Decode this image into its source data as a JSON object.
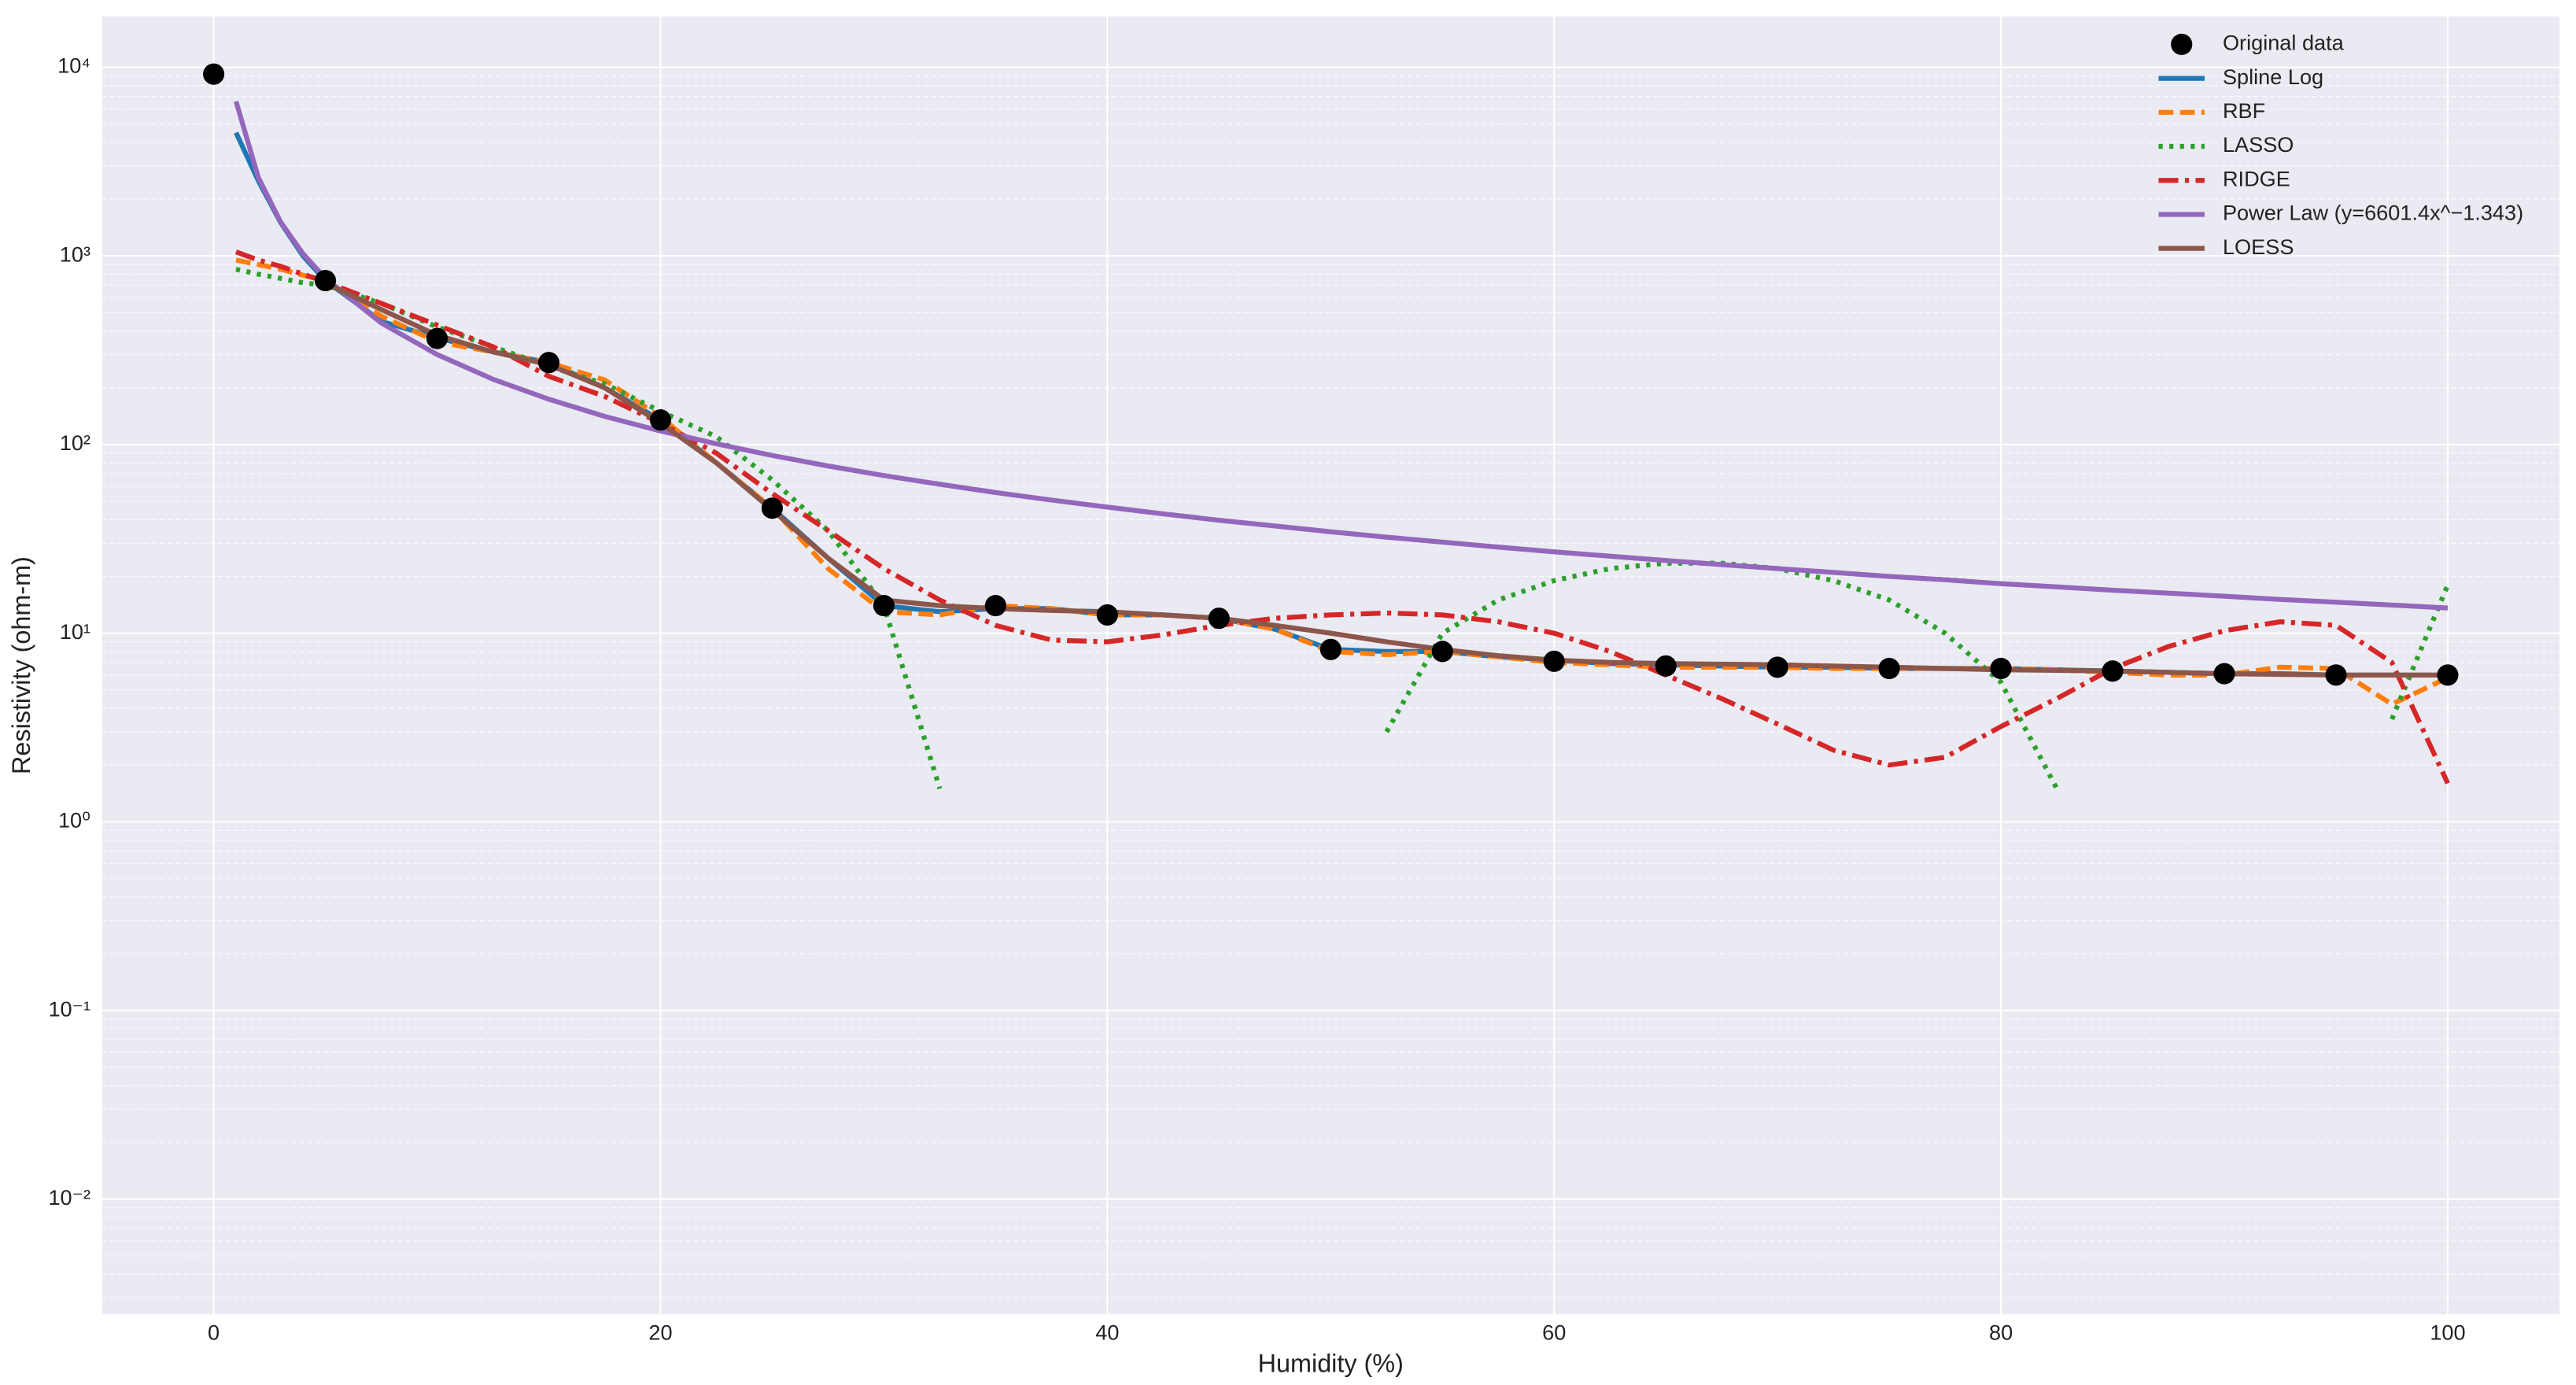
{
  "chart_data": {
    "type": "line",
    "xlabel": "Humidity (%)",
    "ylabel": "Resistivity (ohm-m)",
    "xlim": [
      -5,
      105
    ],
    "xticks": [
      0,
      20,
      40,
      60,
      80,
      100
    ],
    "ylim": [
      0.00245,
      18600
    ],
    "log_y": true,
    "yticks": [
      {
        "value": 0.01,
        "label": "10⁻²"
      },
      {
        "value": 0.1,
        "label": "10⁻¹"
      },
      {
        "value": 1,
        "label": "10⁰"
      },
      {
        "value": 10,
        "label": "10¹"
      },
      {
        "value": 100,
        "label": "10²"
      },
      {
        "value": 1000,
        "label": "10³"
      },
      {
        "value": 10000,
        "label": "10⁴"
      }
    ],
    "grid": true,
    "minor_grid": true,
    "legend": "upper right",
    "series": [
      {
        "name": "Original data",
        "type": "scatter",
        "color": "#000000",
        "x": [
          0,
          5,
          10,
          15,
          20,
          25,
          30,
          35,
          40,
          45,
          50,
          55,
          60,
          65,
          70,
          75,
          80,
          85,
          90,
          95,
          100
        ],
        "values": [
          9200,
          740,
          365,
          272,
          135,
          46,
          14,
          14,
          12.5,
          12,
          8.2,
          8,
          7.1,
          6.7,
          6.6,
          6.5,
          6.5,
          6.3,
          6.1,
          6.0,
          6.0
        ]
      },
      {
        "name": "Spline Log",
        "color": "#1f77b4",
        "dash": "solid",
        "x": [
          1,
          2,
          3,
          4,
          5,
          7.5,
          10,
          12.5,
          15,
          17.5,
          20,
          22.5,
          25,
          27.5,
          30,
          32.5,
          35,
          37.5,
          40,
          42.5,
          45,
          47.5,
          50,
          52.5,
          55,
          57.5,
          60,
          62.5,
          65,
          67.5,
          70,
          72.5,
          75,
          77.5,
          80,
          82.5,
          85,
          87.5,
          90,
          92.5,
          95,
          97.5,
          100
        ],
        "values": [
          4500,
          2500,
          1500,
          1000,
          740,
          450,
          368,
          310,
          272,
          200,
          135,
          80,
          46,
          25,
          14,
          13,
          13.5,
          13.5,
          12.5,
          12.5,
          12,
          10.5,
          8.2,
          8,
          8,
          7.5,
          7.2,
          6.9,
          6.8,
          6.7,
          6.6,
          6.6,
          6.5,
          6.5,
          6.5,
          6.4,
          6.3,
          6.2,
          6.1,
          6.1,
          6.0,
          6.0,
          6.0
        ]
      },
      {
        "name": "RBF",
        "color": "#ff7f0e",
        "dash": "dashed",
        "x": [
          1,
          2,
          3,
          4,
          5,
          7.5,
          10,
          12.5,
          15,
          17.5,
          20,
          22.5,
          25,
          27.5,
          30,
          32.5,
          35,
          37.5,
          40,
          42.5,
          45,
          47.5,
          50,
          52.5,
          55,
          57.5,
          60,
          62.5,
          65,
          67.5,
          70,
          72.5,
          75,
          77.5,
          80,
          82.5,
          85,
          87.5,
          90,
          92.5,
          95,
          97.5,
          100
        ],
        "values": [
          950,
          900,
          850,
          790,
          740,
          480,
          350,
          310,
          272,
          220,
          140,
          80,
          46,
          22,
          13,
          12.5,
          14,
          13.5,
          12.5,
          12.5,
          12,
          10.5,
          8,
          7.7,
          8,
          7.5,
          7,
          6.8,
          6.6,
          6.6,
          6.6,
          6.5,
          6.5,
          6.5,
          6.5,
          6.4,
          6.2,
          6.0,
          6.0,
          6.6,
          6.5,
          4.2,
          5.8
        ]
      },
      {
        "name": "LASSO",
        "color": "#2ca02c",
        "dash": "dotted",
        "x": [
          1,
          2,
          3,
          4,
          5,
          7.5,
          10,
          12.5,
          15,
          17.5,
          20,
          22.5,
          25,
          27.5,
          30,
          32.5,
          35,
          37.5,
          40,
          42.5,
          45,
          47.5,
          50,
          52.5,
          55,
          57.5,
          60,
          62.5,
          65,
          67.5,
          70,
          72.5,
          75,
          77.5,
          80,
          82.5,
          85,
          87.5,
          90,
          92.5,
          95,
          97.5,
          100
        ],
        "values": [
          850,
          800,
          760,
          720,
          700,
          560,
          420,
          330,
          260,
          210,
          150,
          110,
          65,
          35,
          14,
          1.5,
          null,
          null,
          null,
          null,
          null,
          null,
          null,
          3,
          10,
          15,
          19,
          22,
          23.5,
          23.5,
          22,
          19,
          15,
          10,
          5.5,
          1.5,
          null,
          null,
          null,
          null,
          null,
          3.5,
          18
        ]
      },
      {
        "name": "RIDGE",
        "color": "#d62728",
        "dash": "dashdot",
        "x": [
          1,
          2,
          3,
          4,
          5,
          7.5,
          10,
          12.5,
          15,
          17.5,
          20,
          22.5,
          25,
          27.5,
          30,
          32.5,
          35,
          37.5,
          40,
          42.5,
          45,
          47.5,
          50,
          52.5,
          55,
          57.5,
          60,
          62.5,
          65,
          67.5,
          70,
          72.5,
          75,
          77.5,
          80,
          82.5,
          85,
          87.5,
          90,
          92.5,
          95,
          97.5,
          100
        ],
        "values": [
          1050,
          950,
          880,
          800,
          730,
          560,
          430,
          330,
          230,
          180,
          130,
          90,
          55,
          35,
          22,
          15,
          11,
          9.2,
          9,
          9.8,
          11,
          12,
          12.5,
          12.8,
          12.5,
          11.5,
          10,
          8,
          6,
          4.5,
          3.3,
          2.4,
          2.0,
          2.2,
          3.2,
          4.5,
          6.5,
          8.5,
          10.3,
          11.5,
          11,
          7,
          1.6
        ]
      },
      {
        "name": "Power Law (y=6601.4x^−1.343)",
        "color": "#9467bd",
        "dash": "solid",
        "x": [
          1,
          2,
          3,
          4,
          5,
          7.5,
          10,
          12.5,
          15,
          17.5,
          20,
          22.5,
          25,
          27.5,
          30,
          32.5,
          35,
          37.5,
          40,
          42.5,
          45,
          47.5,
          50,
          52.5,
          55,
          57.5,
          60,
          62.5,
          65,
          67.5,
          70,
          72.5,
          75,
          77.5,
          80,
          82.5,
          85,
          87.5,
          90,
          92.5,
          95,
          97.5,
          100
        ],
        "values": [
          6601,
          2602,
          1510,
          1026,
          760,
          441,
          300,
          222,
          174,
          141,
          118,
          101,
          87.5,
          77,
          68.5,
          61.6,
          55.7,
          50.8,
          46.6,
          42.9,
          39.7,
          37.0,
          34.5,
          32.3,
          30.4,
          28.6,
          27.0,
          25.6,
          24.3,
          23.1,
          22.0,
          21.0,
          20.0,
          19.2,
          18.3,
          17.6,
          16.9,
          16.3,
          15.7,
          15.1,
          14.6,
          14.1,
          13.6
        ]
      },
      {
        "name": "LOESS",
        "color": "#8c564b",
        "dash": "solid",
        "x": [
          1,
          2,
          3,
          4,
          5,
          7.5,
          10,
          12.5,
          15,
          17.5,
          20,
          22.5,
          25,
          27.5,
          30,
          32.5,
          35,
          37.5,
          40,
          42.5,
          45,
          47.5,
          50,
          52.5,
          55,
          57.5,
          60,
          62.5,
          65,
          67.5,
          70,
          72.5,
          75,
          77.5,
          80,
          82.5,
          85,
          87.5,
          90,
          92.5,
          95,
          97.5,
          100
        ],
        "values": [
          null,
          null,
          null,
          null,
          720,
          520,
          380,
          310,
          265,
          200,
          130,
          80,
          45,
          25,
          15,
          14,
          13.5,
          13.2,
          13,
          12.5,
          12,
          11,
          10,
          9,
          8.2,
          7.6,
          7.2,
          7,
          6.9,
          6.85,
          6.8,
          6.7,
          6.6,
          6.5,
          6.4,
          6.35,
          6.3,
          6.2,
          6.1,
          6.05,
          6.0,
          6.0,
          6.0
        ]
      }
    ]
  }
}
